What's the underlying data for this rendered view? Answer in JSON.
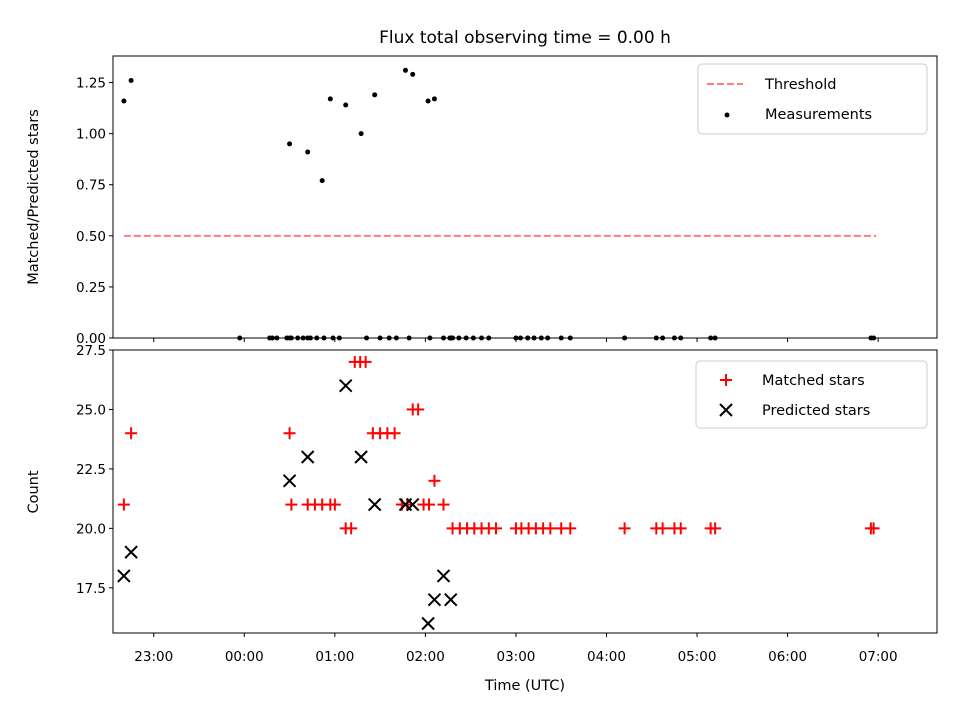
{
  "chart_data": [
    {
      "type": "scatter",
      "title": "Flux total observing time = 0.00 h",
      "xlabel": "",
      "ylabel": "Matched/Predicted stars",
      "xlim_hours": [
        -1.45,
        7.65
      ],
      "ylim": [
        0.0,
        1.38
      ],
      "yticks": [
        "0.00",
        "0.25",
        "0.50",
        "0.75",
        "1.00",
        "1.25"
      ],
      "yticks_values": [
        0.0,
        0.25,
        0.5,
        0.75,
        1.0,
        1.25
      ],
      "threshold": {
        "name": "Threshold",
        "y": 0.5,
        "x_range": [
          -1.33,
          6.98
        ],
        "color": "#ff7f7f"
      },
      "legend": {
        "location": "upper right",
        "entries": [
          "Threshold",
          "Measurements"
        ]
      },
      "series": [
        {
          "name": "Measurements",
          "color": "#000000",
          "x": [
            -1.33,
            -1.25,
            0.5,
            0.7,
            0.86,
            0.95,
            1.12,
            1.29,
            1.44,
            1.78,
            1.86,
            2.03,
            2.1,
            2.2,
            2.28,
            -0.05,
            0.28,
            0.31,
            0.36,
            0.47,
            0.5,
            0.52,
            0.59,
            0.65,
            0.7,
            0.73,
            0.8,
            0.88,
            0.98,
            1.05,
            1.35,
            1.5,
            1.6,
            1.68,
            1.82,
            2.05,
            2.27,
            2.3,
            2.37,
            2.45,
            2.53,
            2.62,
            2.7,
            3.0,
            3.05,
            3.13,
            3.2,
            3.28,
            3.35,
            3.5,
            3.6,
            4.2,
            4.55,
            4.62,
            4.75,
            4.82,
            5.15,
            5.2,
            6.92,
            6.95
          ],
          "y": [
            1.16,
            1.26,
            0.95,
            0.91,
            0.77,
            1.17,
            1.14,
            1.0,
            1.19,
            1.31,
            1.29,
            1.16,
            1.17,
            0,
            0,
            0,
            0,
            0,
            0,
            0,
            0,
            0,
            0,
            0,
            0,
            0,
            0,
            0,
            0,
            0,
            0,
            0,
            0,
            0,
            0,
            0,
            0,
            0,
            0,
            0,
            0,
            0,
            0,
            0,
            0,
            0,
            0,
            0,
            0,
            0,
            0,
            0,
            0,
            0,
            0,
            0,
            0,
            0,
            0,
            0
          ]
        }
      ]
    },
    {
      "type": "scatter",
      "title": "",
      "xlabel": "Time (UTC)",
      "ylabel": "Count",
      "xlim_hours": [
        -1.45,
        7.65
      ],
      "ylim": [
        15.6,
        27.5
      ],
      "yticks": [
        "17.5",
        "20.0",
        "22.5",
        "25.0",
        "27.5"
      ],
      "yticks_values": [
        17.5,
        20.0,
        22.5,
        25.0,
        27.5
      ],
      "xticks": [
        "23:00",
        "00:00",
        "01:00",
        "02:00",
        "03:00",
        "04:00",
        "05:00",
        "06:00",
        "07:00"
      ],
      "xticks_values": [
        -1,
        0,
        1,
        2,
        3,
        4,
        5,
        6,
        7
      ],
      "legend": {
        "location": "upper right",
        "entries": [
          "Matched stars",
          "Predicted stars"
        ]
      },
      "series": [
        {
          "name": "Matched stars",
          "marker": "+",
          "color": "#ff0000",
          "x": [
            -1.33,
            -1.25,
            0.5,
            0.52,
            0.7,
            0.78,
            0.86,
            0.95,
            1.0,
            1.12,
            1.18,
            1.22,
            1.28,
            1.34,
            1.42,
            1.5,
            1.58,
            1.66,
            1.74,
            1.8,
            1.86,
            1.92,
            1.98,
            2.04,
            2.1,
            2.2,
            2.3,
            2.38,
            2.46,
            2.54,
            2.62,
            2.7,
            2.78,
            3.0,
            3.06,
            3.14,
            3.22,
            3.3,
            3.38,
            3.5,
            3.6,
            4.2,
            4.55,
            4.62,
            4.75,
            4.82,
            5.15,
            5.2,
            6.92,
            6.95
          ],
          "y": [
            21,
            24,
            24,
            21,
            21,
            21,
            21,
            21,
            21,
            20,
            20,
            27,
            27,
            27,
            24,
            24,
            24,
            24,
            21,
            21,
            25,
            25,
            21,
            21,
            22,
            21,
            20,
            20,
            20,
            20,
            20,
            20,
            20,
            20,
            20,
            20,
            20,
            20,
            20,
            20,
            20,
            20,
            20,
            20,
            20,
            20,
            20,
            20,
            20,
            20
          ]
        },
        {
          "name": "Predicted stars",
          "marker": "x",
          "color": "#000000",
          "x": [
            -1.33,
            -1.25,
            0.5,
            0.7,
            1.12,
            1.29,
            1.44,
            1.78,
            1.86,
            2.03,
            2.1,
            2.2,
            2.28
          ],
          "y": [
            18,
            19,
            22,
            23,
            26,
            23,
            21,
            21,
            21,
            16,
            17,
            18,
            17
          ]
        }
      ]
    }
  ]
}
